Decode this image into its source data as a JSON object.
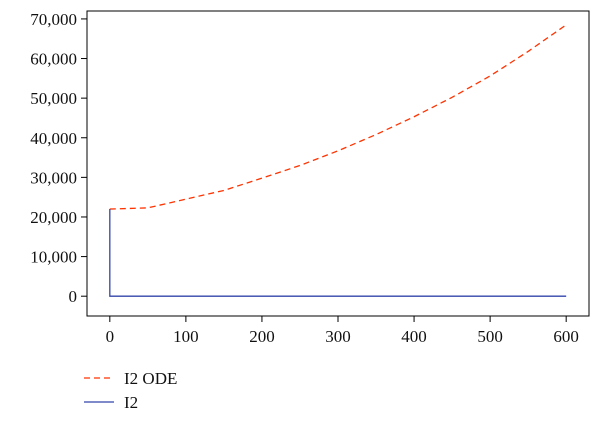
{
  "chart_data": {
    "type": "line",
    "title": "",
    "xlabel": "",
    "ylabel": "",
    "xlim": [
      -30,
      630
    ],
    "ylim": [
      -5000,
      72000
    ],
    "x_ticks": [
      0,
      100,
      200,
      300,
      400,
      500,
      600
    ],
    "x_tick_labels": [
      "0",
      "100",
      "200",
      "300",
      "400",
      "500",
      "600"
    ],
    "y_ticks": [
      0,
      10000,
      20000,
      30000,
      40000,
      50000,
      60000,
      70000
    ],
    "y_tick_labels": [
      "0",
      "10,000",
      "20,000",
      "30,000",
      "40,000",
      "50,000",
      "60,000",
      "70,000"
    ],
    "grid": false,
    "legend_position": "bottom-left",
    "series": [
      {
        "name": "I2 ODE",
        "color": "#ff3300",
        "style": "dashed",
        "x": [
          0,
          50,
          100,
          150,
          200,
          250,
          300,
          350,
          400,
          450,
          500,
          550,
          600
        ],
        "y": [
          22000,
          22300,
          24500,
          26700,
          29800,
          33000,
          36700,
          40800,
          45300,
          50200,
          55600,
          61800,
          68500
        ]
      },
      {
        "name": "I2",
        "color": "#3344aa",
        "style": "solid",
        "x": [
          0,
          0,
          0,
          600
        ],
        "y": [
          22000,
          10000,
          0,
          0
        ]
      }
    ]
  }
}
